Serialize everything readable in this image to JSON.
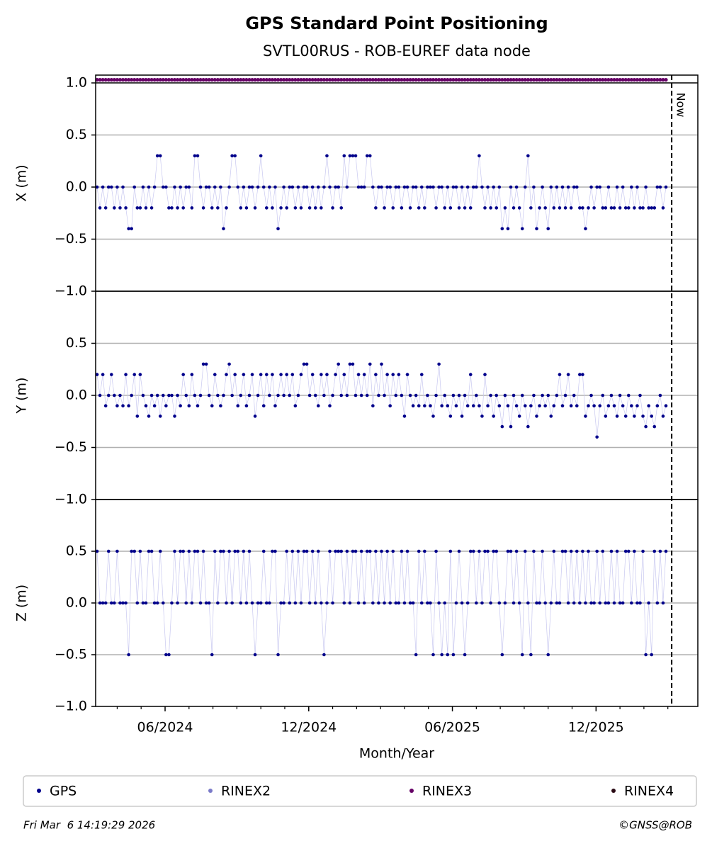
{
  "chart_data": {
    "type": "scatter",
    "title": "GPS Standard Point Positioning",
    "subtitle": "SVTL00RUS - ROB-EUREF data node",
    "xlabel": "Month/Year",
    "xlim": [
      2024.175,
      2026.271
    ],
    "xticks": [
      {
        "value": 2024.4167,
        "label": "06/2024"
      },
      {
        "value": 2024.9167,
        "label": "12/2024"
      },
      {
        "value": 2025.4167,
        "label": "06/2025"
      },
      {
        "value": 2025.9167,
        "label": "12/2025"
      }
    ],
    "x_minor_ticks": [
      2024.25,
      2024.3333,
      2024.5,
      2024.5833,
      2024.6667,
      2024.75,
      2024.8333,
      2025.0,
      2025.0833,
      2025.1667,
      2025.25,
      2025.3333,
      2025.5,
      2025.5833,
      2025.6667,
      2025.75,
      2025.8333,
      2026.0,
      2026.0833,
      2026.1667
    ],
    "now": {
      "x": 2026.18,
      "label": "Now"
    },
    "grid": true,
    "x": [
      2024.18,
      2024.19,
      2024.2,
      2024.21,
      2024.22,
      2024.23,
      2024.24,
      2024.25,
      2024.26,
      2024.27,
      2024.28,
      2024.29,
      2024.3,
      2024.31,
      2024.32,
      2024.33,
      2024.34,
      2024.35,
      2024.36,
      2024.37,
      2024.38,
      2024.39,
      2024.4,
      2024.41,
      2024.42,
      2024.43,
      2024.44,
      2024.45,
      2024.46,
      2024.47,
      2024.48,
      2024.49,
      2024.5,
      2024.51,
      2024.52,
      2024.53,
      2024.54,
      2024.55,
      2024.56,
      2024.57,
      2024.58,
      2024.59,
      2024.6,
      2024.61,
      2024.62,
      2024.63,
      2024.64,
      2024.65,
      2024.66,
      2024.67,
      2024.68,
      2024.69,
      2024.7,
      2024.71,
      2024.72,
      2024.73,
      2024.74,
      2024.75,
      2024.76,
      2024.77,
      2024.78,
      2024.79,
      2024.8,
      2024.81,
      2024.82,
      2024.83,
      2024.84,
      2024.85,
      2024.86,
      2024.87,
      2024.88,
      2024.89,
      2024.9,
      2024.91,
      2024.92,
      2024.93,
      2024.94,
      2024.95,
      2024.96,
      2024.97,
      2024.98,
      2024.99,
      2025.0,
      2025.01,
      2025.02,
      2025.03,
      2025.04,
      2025.05,
      2025.06,
      2025.07,
      2025.08,
      2025.09,
      2025.1,
      2025.11,
      2025.12,
      2025.13,
      2025.14,
      2025.15,
      2025.16,
      2025.17,
      2025.18,
      2025.19,
      2025.2,
      2025.21,
      2025.22,
      2025.23,
      2025.24,
      2025.25,
      2025.26,
      2025.27,
      2025.28,
      2025.29,
      2025.3,
      2025.31,
      2025.32,
      2025.33,
      2025.34,
      2025.35,
      2025.36,
      2025.37,
      2025.38,
      2025.39,
      2025.4,
      2025.41,
      2025.42,
      2025.43,
      2025.44,
      2025.45,
      2025.46,
      2025.47,
      2025.48,
      2025.49,
      2025.5,
      2025.51,
      2025.52,
      2025.53,
      2025.54,
      2025.55,
      2025.56,
      2025.57,
      2025.58,
      2025.59,
      2025.6,
      2025.61,
      2025.62,
      2025.63,
      2025.64,
      2025.65,
      2025.66,
      2025.67,
      2025.68,
      2025.69,
      2025.7,
      2025.71,
      2025.72,
      2025.73,
      2025.74,
      2025.75,
      2025.76,
      2025.77,
      2025.78,
      2025.79,
      2025.8,
      2025.81,
      2025.82,
      2025.83,
      2025.84,
      2025.85,
      2025.86,
      2025.87,
      2025.88,
      2025.89,
      2025.9,
      2025.91,
      2025.92,
      2025.93,
      2025.94,
      2025.95,
      2025.96,
      2025.97,
      2025.98,
      2025.99,
      2026.0,
      2026.01,
      2026.02,
      2026.03,
      2026.04,
      2026.05,
      2026.06,
      2026.07,
      2026.08,
      2026.09,
      2026.1,
      2026.11,
      2026.12,
      2026.13,
      2026.14,
      2026.15,
      2026.16
    ],
    "series": [
      {
        "name": "GPS",
        "color": "#00008b"
      },
      {
        "name": "RINEX2",
        "color": "#7b7bc9"
      },
      {
        "name": "RINEX3",
        "color": "#660066"
      },
      {
        "name": "RINEX4",
        "color": "#2a0a14"
      }
    ],
    "panels": [
      {
        "ylabel": "X (m)",
        "ylim": [
          -1,
          1.075
        ],
        "yticks": [
          {
            "value": -1,
            "label": "−1.0"
          },
          {
            "value": -0.5,
            "label": "−0.5"
          },
          {
            "value": 0,
            "label": "0.0"
          },
          {
            "value": 0.5,
            "label": "0.5"
          },
          {
            "value": 1,
            "label": "1.0"
          }
        ],
        "gps_values": [
          0,
          -0.2,
          0,
          -0.2,
          0,
          0,
          -0.2,
          0,
          -0.2,
          0,
          -0.2,
          -0.4,
          -0.4,
          0,
          -0.2,
          -0.2,
          0,
          -0.2,
          0,
          -0.2,
          0,
          0.3,
          0.3,
          0,
          0,
          -0.2,
          -0.2,
          0,
          -0.2,
          0,
          -0.2,
          0,
          0,
          -0.2,
          0.3,
          0.3,
          0,
          -0.2,
          0,
          0,
          -0.2,
          0,
          -0.2,
          0,
          -0.4,
          -0.2,
          0,
          0.3,
          0.3,
          0,
          -0.2,
          0,
          -0.2,
          0,
          0,
          -0.2,
          0,
          0.3,
          0,
          -0.2,
          0,
          -0.2,
          0,
          -0.4,
          -0.2,
          0,
          -0.2,
          0,
          0,
          -0.2,
          0,
          -0.2,
          0,
          0,
          -0.2,
          0,
          -0.2,
          0,
          -0.2,
          0,
          0.3,
          0,
          -0.2,
          0,
          0,
          -0.2,
          0.3,
          0,
          0.3,
          0.3,
          0.3,
          0,
          0,
          0,
          0.3,
          0.3,
          0,
          -0.2,
          0,
          0,
          -0.2,
          0,
          0,
          -0.2,
          0,
          0,
          -0.2,
          0,
          0,
          -0.2,
          0,
          0,
          -0.2,
          0,
          -0.2,
          0,
          0,
          0,
          -0.2,
          0,
          0,
          -0.2,
          0,
          -0.2,
          0,
          0,
          -0.2,
          0,
          -0.2,
          0,
          -0.2,
          0,
          0,
          0.3,
          0,
          -0.2,
          0,
          -0.2,
          0,
          -0.2,
          0,
          -0.4,
          -0.2,
          -0.4,
          0,
          -0.2,
          0,
          -0.2,
          -0.4,
          0,
          0.3,
          -0.2,
          0,
          -0.4,
          -0.2,
          0,
          -0.2,
          -0.4,
          0,
          -0.2,
          0,
          -0.2,
          0,
          -0.2,
          0,
          -0.2,
          0,
          0,
          -0.2,
          -0.2,
          -0.4,
          -0.2,
          0,
          -0.2,
          0,
          0,
          -0.2,
          -0.2,
          0,
          -0.2,
          -0.2,
          0,
          -0.2,
          0,
          -0.2,
          -0.2,
          0,
          -0.2,
          0,
          -0.2,
          -0.2,
          0,
          -0.2,
          -0.2,
          -0.2,
          0,
          0,
          -0.2,
          0
        ],
        "rinex3_values": [
          1.03,
          1.03,
          1.03,
          1.03,
          1.03,
          1.03,
          1.03,
          1.03,
          1.03,
          1.03,
          1.03,
          1.03,
          1.03,
          1.03,
          1.03,
          1.03,
          1.03,
          1.03,
          1.03,
          1.03,
          1.03,
          1.03,
          1.03,
          1.03,
          1.03,
          1.03,
          1.03,
          1.03,
          1.03,
          1.03,
          1.03,
          1.03,
          1.03,
          1.03,
          1.03,
          1.03,
          1.03,
          1.03,
          1.03,
          1.03,
          1.03,
          1.03,
          1.03,
          1.03,
          1.03,
          1.03,
          1.03,
          1.03,
          1.03,
          1.03,
          1.03,
          1.03,
          1.03,
          1.03,
          1.03,
          1.03,
          1.03,
          1.03,
          1.03,
          1.03,
          1.03,
          1.03,
          1.03,
          1.03,
          1.03,
          1.03,
          1.03,
          1.03,
          1.03,
          1.03,
          1.03,
          1.03,
          1.03,
          1.03,
          1.03,
          1.03,
          1.03,
          1.03,
          1.03,
          1.03,
          1.03,
          1.03,
          1.03,
          1.03,
          1.03,
          1.03,
          1.03,
          1.03,
          1.03,
          1.03,
          1.03,
          1.03,
          1.03,
          1.03,
          1.03,
          1.03,
          1.03,
          1.03,
          1.03,
          1.03,
          1.03,
          1.03,
          1.03,
          1.03,
          1.03,
          1.03,
          1.03,
          1.03,
          1.03,
          1.03,
          1.03,
          1.03,
          1.03,
          1.03,
          1.03,
          1.03,
          1.03,
          1.03,
          1.03,
          1.03,
          1.03,
          1.03,
          1.03,
          1.03,
          1.03,
          1.03,
          1.03,
          1.03,
          1.03,
          1.03,
          1.03,
          1.03,
          1.03,
          1.03,
          1.03,
          1.03,
          1.03,
          1.03,
          1.03,
          1.03,
          1.03,
          1.03,
          1.03,
          1.03,
          1.03,
          1.03,
          1.03,
          1.03,
          1.03,
          1.03,
          1.03,
          1.03,
          1.03,
          1.03,
          1.03,
          1.03,
          1.03,
          1.03,
          1.03,
          1.03,
          1.03,
          1.03,
          1.03,
          1.03,
          1.03,
          1.03,
          1.03,
          1.03,
          1.03,
          1.03,
          1.03,
          1.03,
          1.03,
          1.03,
          1.03,
          1.03,
          1.03,
          1.03,
          1.03,
          1.03,
          1.03,
          1.03,
          1.03,
          1.03,
          1.03,
          1.03,
          1.03,
          1.03,
          1.03,
          1.03,
          1.03,
          1.03,
          1.03,
          1.03,
          1.03,
          1.03,
          1.03,
          1.03,
          1.03
        ]
      },
      {
        "ylabel": "Y (m)",
        "ylim": [
          -1,
          1
        ],
        "yticks": [
          {
            "value": -1,
            "label": "−1.0"
          },
          {
            "value": -0.5,
            "label": "−0.5"
          },
          {
            "value": 0,
            "label": "0.0"
          },
          {
            "value": 0.5,
            "label": "0.5"
          }
        ],
        "gps_values": [
          0.2,
          0,
          0.2,
          -0.1,
          0,
          0.2,
          0,
          -0.1,
          0,
          -0.1,
          0.2,
          -0.1,
          0,
          0.2,
          -0.2,
          0.2,
          0,
          -0.1,
          -0.2,
          0,
          -0.1,
          0,
          -0.2,
          0,
          -0.1,
          0,
          0,
          -0.2,
          0,
          -0.1,
          0.2,
          0,
          -0.1,
          0.2,
          0,
          -0.1,
          0,
          0.3,
          0.3,
          0,
          -0.1,
          0.2,
          0,
          -0.1,
          0,
          0.2,
          0.3,
          0,
          0.2,
          -0.1,
          0,
          0.2,
          -0.1,
          0,
          0.2,
          -0.2,
          0,
          0.2,
          -0.1,
          0.2,
          0,
          0.2,
          -0.1,
          0,
          0.2,
          0,
          0.2,
          0,
          0.2,
          -0.1,
          0,
          0.2,
          0.3,
          0.3,
          0,
          0.2,
          0,
          -0.1,
          0.2,
          0,
          0.2,
          -0.1,
          0,
          0.2,
          0.3,
          0,
          0.2,
          0,
          0.3,
          0.3,
          0,
          0.2,
          0,
          0.2,
          0,
          0.3,
          -0.1,
          0.2,
          0,
          0.3,
          0,
          0.2,
          -0.1,
          0.2,
          0,
          0.2,
          0,
          -0.2,
          0.2,
          0,
          -0.1,
          0,
          -0.1,
          0.2,
          -0.1,
          0,
          -0.1,
          -0.2,
          0,
          0.3,
          -0.1,
          0,
          -0.1,
          -0.2,
          0,
          -0.1,
          0,
          -0.2,
          0,
          -0.1,
          0.2,
          -0.1,
          0,
          -0.1,
          -0.2,
          0.2,
          -0.1,
          0,
          -0.2,
          0,
          -0.1,
          -0.3,
          0,
          -0.1,
          -0.3,
          0,
          -0.1,
          -0.2,
          0,
          -0.1,
          -0.3,
          -0.1,
          0,
          -0.2,
          -0.1,
          0,
          -0.1,
          0,
          -0.2,
          -0.1,
          0,
          0.2,
          -0.1,
          0,
          0.2,
          -0.1,
          0,
          -0.1,
          0.2,
          0.2,
          -0.2,
          -0.1,
          0,
          -0.1,
          -0.4,
          -0.1,
          0,
          -0.2,
          -0.1,
          0,
          -0.1,
          -0.2,
          0,
          -0.1,
          -0.2,
          0,
          -0.1,
          -0.2,
          -0.1,
          0,
          -0.2,
          -0.3,
          -0.1,
          -0.2,
          -0.3,
          -0.1,
          0,
          -0.2,
          -0.1
        ]
      },
      {
        "ylabel": "Z (m)",
        "ylim": [
          -1,
          1
        ],
        "yticks": [
          {
            "value": -1,
            "label": "−1.0"
          },
          {
            "value": -0.5,
            "label": "−0.5"
          },
          {
            "value": 0,
            "label": "0.0"
          },
          {
            "value": 0.5,
            "label": "0.5"
          }
        ],
        "gps_values": [
          0.5,
          0,
          0,
          0,
          0.5,
          0,
          0,
          0.5,
          0,
          0,
          0,
          -0.5,
          0.5,
          0.5,
          0,
          0.5,
          0,
          0,
          0.5,
          0.5,
          0,
          0,
          0.5,
          0,
          -0.5,
          -0.5,
          0,
          0.5,
          0,
          0.5,
          0.5,
          0,
          0.5,
          0,
          0.5,
          0.5,
          0,
          0.5,
          0,
          0,
          -0.5,
          0.5,
          0,
          0.5,
          0.5,
          0,
          0.5,
          0,
          0.5,
          0.5,
          0,
          0.5,
          0,
          0.5,
          0,
          -0.5,
          0,
          0,
          0.5,
          0,
          0,
          0.5,
          0.5,
          -0.5,
          0,
          0,
          0.5,
          0,
          0.5,
          0,
          0.5,
          0,
          0.5,
          0.5,
          0,
          0.5,
          0,
          0.5,
          0,
          -0.5,
          0,
          0.5,
          0,
          0.5,
          0.5,
          0.5,
          0,
          0.5,
          0,
          0.5,
          0.5,
          0,
          0.5,
          0,
          0.5,
          0.5,
          0,
          0.5,
          0,
          0.5,
          0,
          0.5,
          0,
          0.5,
          0,
          0,
          0.5,
          0,
          0.5,
          0,
          0,
          -0.5,
          0.5,
          0,
          0.5,
          0,
          0,
          -0.5,
          0.5,
          0,
          -0.5,
          0,
          -0.5,
          0.5,
          -0.5,
          0,
          0.5,
          0,
          -0.5,
          0,
          0.5,
          0.5,
          0,
          0.5,
          0,
          0.5,
          0.5,
          0,
          0.5,
          0.5,
          0,
          -0.5,
          0,
          0.5,
          0.5,
          0,
          0.5,
          0,
          -0.5,
          0.5,
          0,
          -0.5,
          0.5,
          0,
          0,
          0.5,
          0,
          -0.5,
          0,
          0.5,
          0,
          0,
          0.5,
          0.5,
          0,
          0.5,
          0,
          0.5,
          0,
          0.5,
          0,
          0.5,
          0,
          0,
          0.5,
          0,
          0.5,
          0,
          0,
          0.5,
          0,
          0.5,
          0,
          0,
          0.5,
          0.5,
          0,
          0.5,
          0,
          0,
          0.5,
          -0.5,
          0,
          -0.5,
          0.5,
          0,
          0.5,
          0,
          0.5
        ]
      }
    ]
  },
  "footer": {
    "timestamp": "Fri Mar  6 14:19:29 2026",
    "credit": "©GNSS@ROB"
  }
}
